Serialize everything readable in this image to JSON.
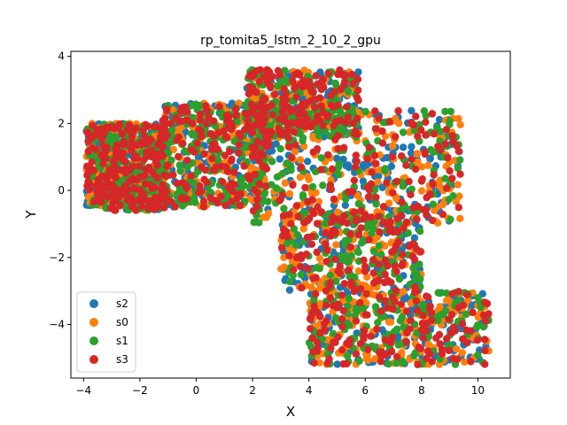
{
  "chart_data": {
    "type": "scatter",
    "title": "rp_tomita5_lstm_2_10_2_gpu",
    "xlabel": "X",
    "ylabel": "Y",
    "xlim": [
      -4.45,
      11.15
    ],
    "ylim": [
      -5.6,
      4.15
    ],
    "xticks": [
      -4,
      -2,
      0,
      2,
      4,
      6,
      8,
      10
    ],
    "yticks": [
      -4,
      -2,
      0,
      2,
      4
    ],
    "grid": false,
    "legend_position": "lower-left",
    "marker": "circle",
    "series": [
      {
        "name": "s2",
        "color": "#1f77b4",
        "n_points": 900
      },
      {
        "name": "s0",
        "color": "#ff7f0e",
        "n_points": 900
      },
      {
        "name": "s1",
        "color": "#2ca02c",
        "n_points": 900
      },
      {
        "name": "s3",
        "color": "#d62728",
        "n_points": 900
      }
    ],
    "cluster_regions": [
      {
        "x": [
          -3.9,
          -1.0
        ],
        "y": [
          -0.6,
          2.0
        ],
        "weight": 0.22
      },
      {
        "x": [
          -1.2,
          2.5
        ],
        "y": [
          -0.5,
          2.6
        ],
        "weight": 0.16
      },
      {
        "x": [
          1.8,
          5.8
        ],
        "y": [
          1.6,
          3.6
        ],
        "weight": 0.14
      },
      {
        "x": [
          2.0,
          9.4
        ],
        "y": [
          -1.0,
          2.4
        ],
        "weight": 0.18
      },
      {
        "x": [
          3.0,
          8.0
        ],
        "y": [
          -3.0,
          -0.6
        ],
        "weight": 0.14
      },
      {
        "x": [
          4.0,
          10.4
        ],
        "y": [
          -5.2,
          -3.0
        ],
        "weight": 0.16
      }
    ]
  }
}
